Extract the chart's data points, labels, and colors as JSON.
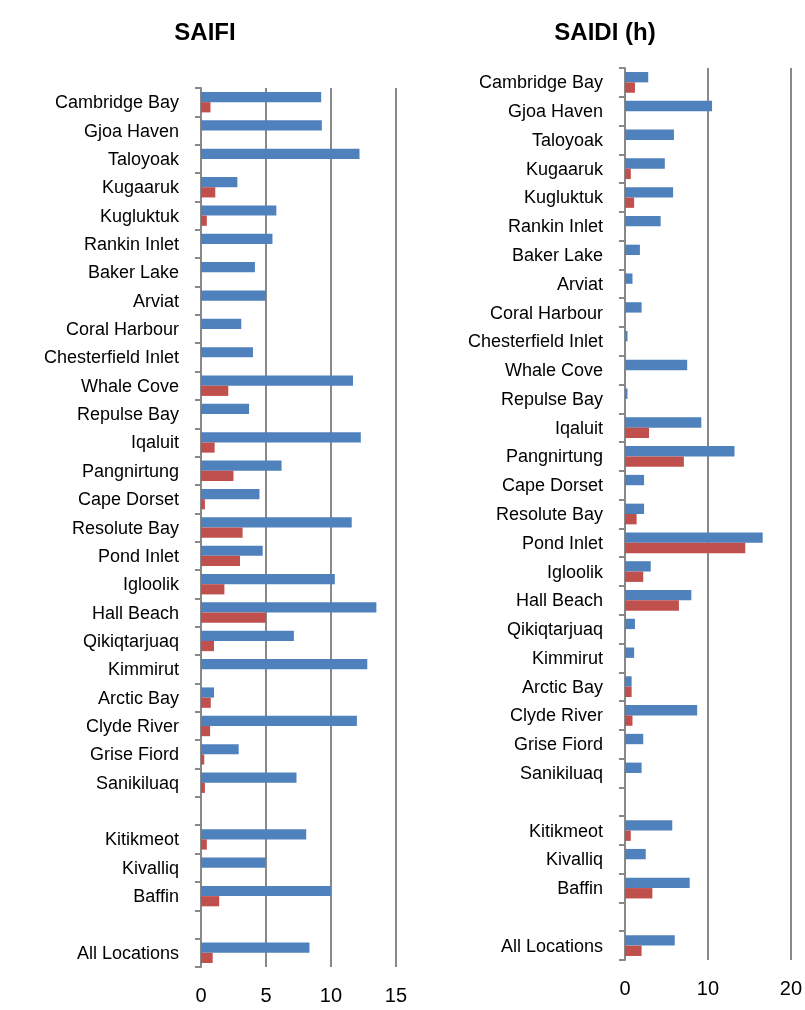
{
  "chart_data": [
    {
      "type": "bar",
      "orientation": "horizontal",
      "title": "SAIFI",
      "categories": [
        "Cambridge Bay",
        "Gjoa Haven",
        "Taloyoak",
        "Kugaaruk",
        "Kugluktuk",
        "Rankin Inlet",
        "Baker Lake",
        "Arviat",
        "Coral Harbour",
        "Chesterfield Inlet",
        "Whale Cove",
        "Repulse Bay",
        "Iqaluit",
        "Pangnirtung",
        "Cape Dorset",
        "Resolute Bay",
        "Pond Inlet",
        "Igloolik",
        "Hall Beach",
        "Qikiqtarjuaq",
        "Kimmirut",
        "Arctic Bay",
        "Clyde River",
        "Grise Fiord",
        "Sanikiluaq",
        null,
        "Kitikmeot",
        "Kivalliq",
        "Baffin",
        null,
        "All Locations"
      ],
      "series": [
        {
          "color": "#4f81bd",
          "values": [
            9.25,
            9.3,
            12.2,
            2.8,
            5.8,
            5.5,
            4.15,
            5.0,
            3.1,
            4.0,
            11.7,
            3.7,
            12.3,
            6.2,
            4.5,
            11.6,
            4.75,
            10.3,
            13.5,
            7.15,
            12.8,
            1.0,
            12.0,
            2.9,
            7.35,
            null,
            8.1,
            4.95,
            10.0,
            null,
            8.35
          ]
        },
        {
          "color": "#c0504d",
          "values": [
            0.73,
            null,
            null,
            1.1,
            0.45,
            null,
            null,
            null,
            null,
            null,
            2.1,
            null,
            1.05,
            2.5,
            0.3,
            3.2,
            3.0,
            1.8,
            5.0,
            1.0,
            null,
            0.75,
            0.7,
            0.25,
            0.3,
            null,
            0.45,
            null,
            1.4,
            null,
            0.9
          ]
        }
      ],
      "xlim": [
        0,
        15
      ],
      "xticks": [
        0,
        5,
        10,
        15
      ],
      "grid": "x"
    },
    {
      "type": "bar",
      "orientation": "horizontal",
      "title": "SAIDI (h)",
      "categories": [
        "Cambridge Bay",
        "Gjoa Haven",
        "Taloyoak",
        "Kugaaruk",
        "Kugluktuk",
        "Rankin Inlet",
        "Baker Lake",
        "Arviat",
        "Coral Harbour",
        "Chesterfield Inlet",
        "Whale Cove",
        "Repulse Bay",
        "Iqaluit",
        "Pangnirtung",
        "Cape Dorset",
        "Resolute Bay",
        "Pond Inlet",
        "Igloolik",
        "Hall Beach",
        "Qikiqtarjuaq",
        "Kimmirut",
        "Arctic Bay",
        "Clyde River",
        "Grise Fiord",
        "Sanikiluaq",
        null,
        "Kitikmeot",
        "Kivalliq",
        "Baffin",
        null,
        "All Locations"
      ],
      "series": [
        {
          "color": "#4f81bd",
          "values": [
            2.8,
            10.5,
            5.9,
            4.8,
            5.8,
            4.3,
            1.8,
            0.9,
            2.0,
            0.3,
            7.5,
            0.3,
            9.2,
            13.2,
            2.3,
            2.3,
            16.6,
            3.1,
            8.0,
            1.2,
            1.1,
            0.8,
            8.7,
            2.2,
            2.0,
            null,
            5.7,
            2.5,
            7.8,
            null,
            6.0
          ]
        },
        {
          "color": "#c0504d",
          "values": [
            1.2,
            null,
            null,
            0.7,
            1.1,
            null,
            null,
            null,
            null,
            null,
            null,
            null,
            2.9,
            7.1,
            null,
            1.4,
            14.5,
            2.2,
            6.5,
            null,
            null,
            0.8,
            0.9,
            null,
            null,
            null,
            0.7,
            null,
            3.3,
            null,
            2.0
          ]
        }
      ],
      "xlim": [
        0,
        20
      ],
      "xticks": [
        0,
        10,
        20
      ],
      "grid": "x"
    }
  ]
}
